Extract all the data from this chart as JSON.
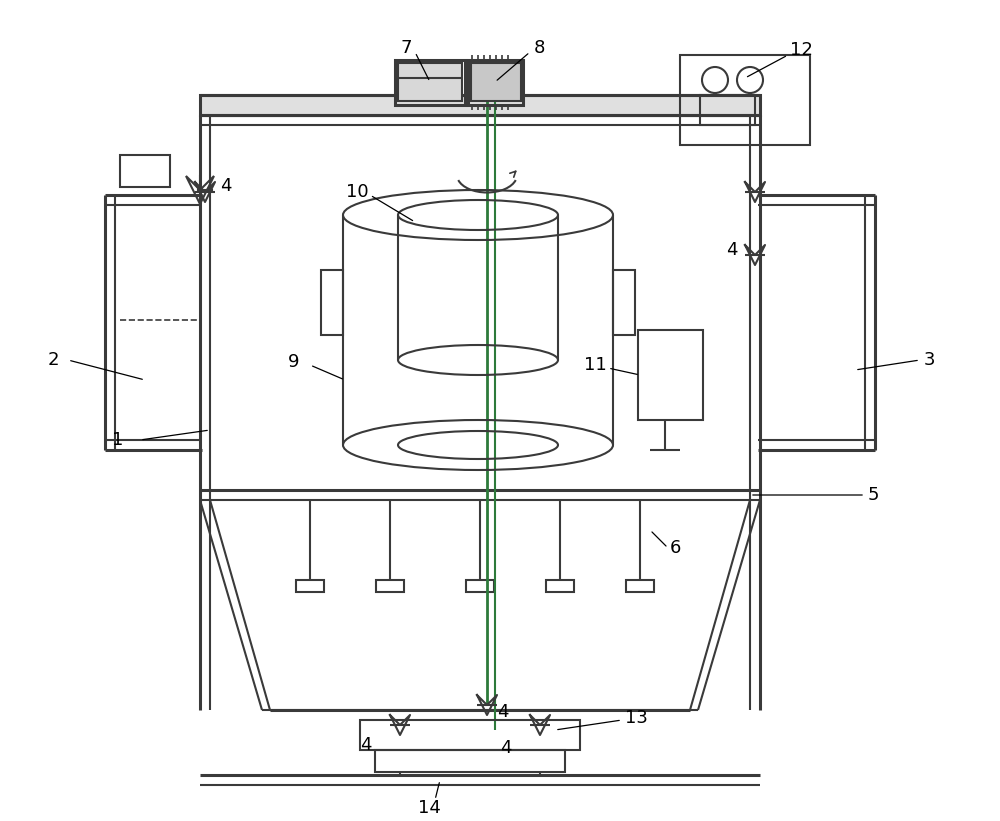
{
  "bg_color": "#ffffff",
  "lc": "#3a3a3a",
  "gc": "#2d7a3a",
  "lw": 1.5,
  "tlw": 2.2
}
